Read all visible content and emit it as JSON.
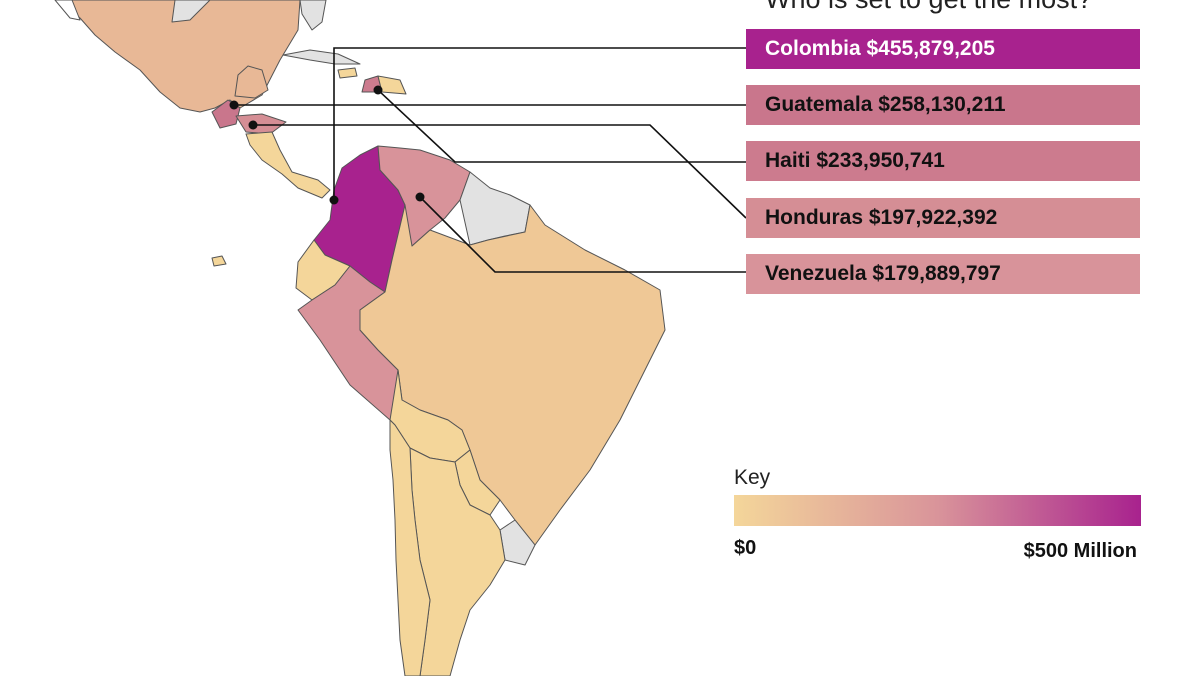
{
  "heading": "Who is set to get the most?",
  "colors": {
    "low": "#f4d69a",
    "mid": "#d9949a",
    "high": "#a8228e",
    "no_data": "#e2e2e2",
    "border": "#555555"
  },
  "map_regions": [
    {
      "name": "Mexico",
      "level": "low-mid"
    },
    {
      "name": "Cuba",
      "level": "no_data"
    },
    {
      "name": "Guatemala",
      "level": "mid-high"
    },
    {
      "name": "Honduras",
      "level": "mid"
    },
    {
      "name": "Nicaragua",
      "level": "low"
    },
    {
      "name": "Costa Rica",
      "level": "low"
    },
    {
      "name": "Panama",
      "level": "low"
    },
    {
      "name": "Haiti",
      "level": "mid-high"
    },
    {
      "name": "Dominican Republic",
      "level": "low"
    },
    {
      "name": "Colombia",
      "level": "high"
    },
    {
      "name": "Venezuela",
      "level": "mid"
    },
    {
      "name": "Guyana",
      "level": "no_data"
    },
    {
      "name": "Suriname",
      "level": "no_data"
    },
    {
      "name": "French Guiana",
      "level": "no_data"
    },
    {
      "name": "Ecuador",
      "level": "low"
    },
    {
      "name": "Peru",
      "level": "mid"
    },
    {
      "name": "Brazil",
      "level": "low"
    },
    {
      "name": "Bolivia",
      "level": "low"
    },
    {
      "name": "Paraguay",
      "level": "low"
    },
    {
      "name": "Uruguay",
      "level": "no_data"
    },
    {
      "name": "Argentina",
      "level": "low"
    },
    {
      "name": "Chile",
      "level": "low"
    }
  ],
  "callouts": [
    {
      "country": "Colombia",
      "amount": "$455,879,205",
      "text": "Colombia $455,879,205",
      "color": "#a8228e",
      "text_color": "#ffffff"
    },
    {
      "country": "Guatemala",
      "amount": "$258,130,211",
      "text": "Guatemala $258,130,211",
      "color": "#c9768c",
      "text_color": "#111111"
    },
    {
      "country": "Haiti",
      "amount": "$233,950,741",
      "text": "Haiti $233,950,741",
      "color": "#cc7b8e",
      "text_color": "#111111"
    },
    {
      "country": "Honduras",
      "amount": "$197,922,392",
      "text": "Honduras $197,922,392",
      "color": "#d58e95",
      "text_color": "#111111"
    },
    {
      "country": "Venezuela",
      "amount": "$179,889,797",
      "text": "Venezuela $179,889,797",
      "color": "#d8939a",
      "text_color": "#111111"
    }
  ],
  "key": {
    "title": "Key",
    "min_label": "$0",
    "max_label": "$500 Million",
    "gradient_start": "#f4d69a",
    "gradient_mid": "#d9949a",
    "gradient_end": "#a8228e"
  }
}
